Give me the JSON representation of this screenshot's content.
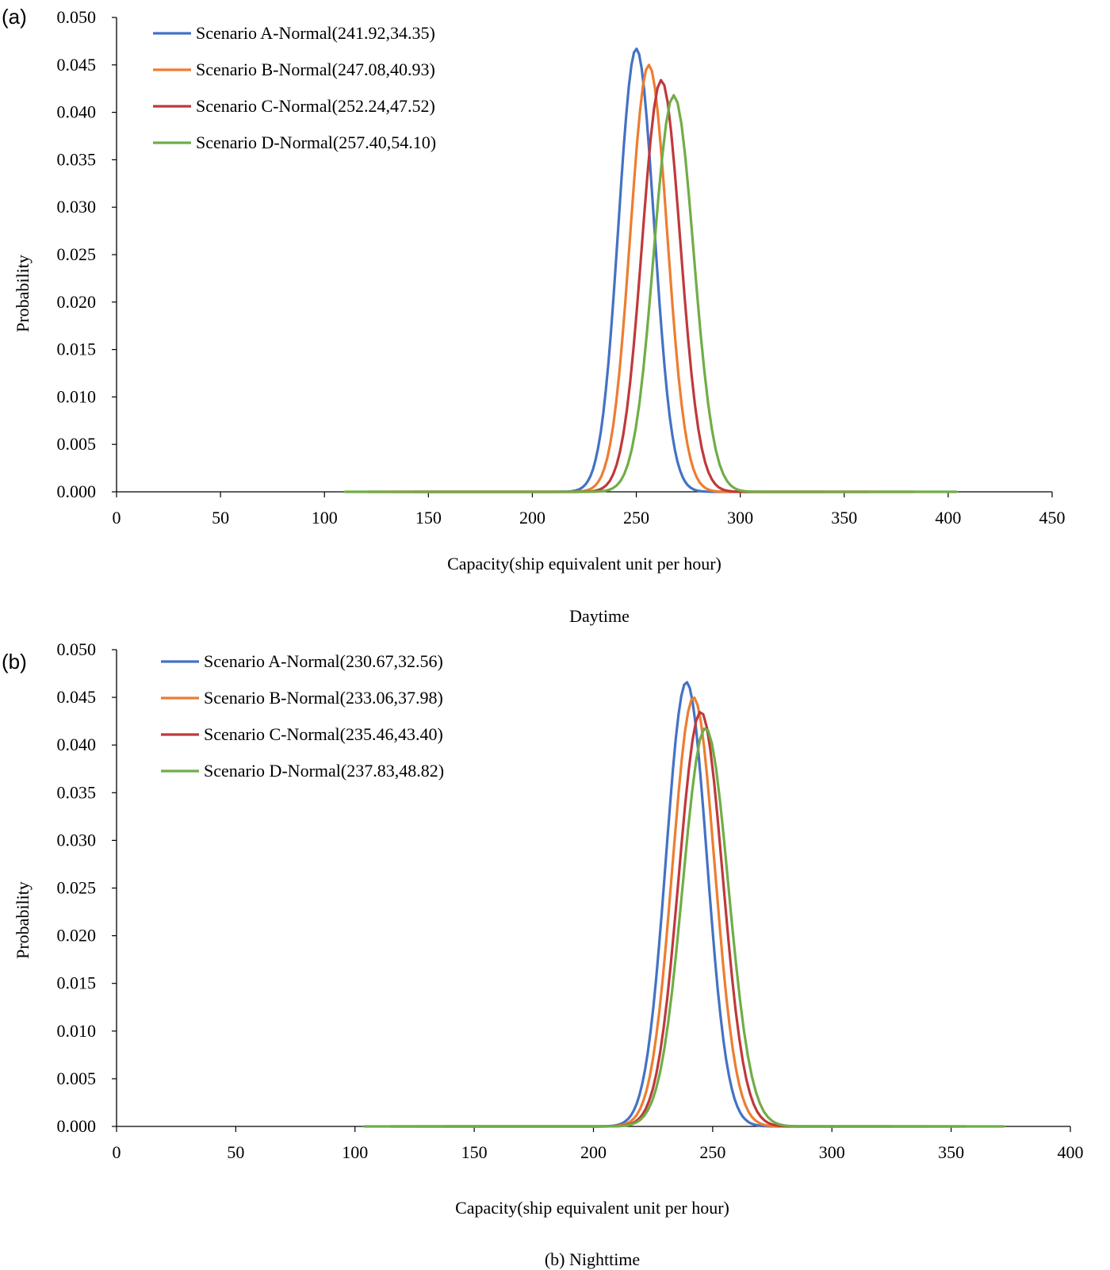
{
  "chart_data": [
    {
      "type": "line",
      "panel_label": "(a)",
      "caption": "Daytime",
      "xlabel": "Capacity(ship  equivalent  unit  per hour)",
      "ylabel": "Probability",
      "xlim": [
        0,
        450
      ],
      "ylim": [
        0,
        0.05
      ],
      "x_ticks": [
        "0",
        "50",
        "100",
        "150",
        "200",
        "250",
        "300",
        "350",
        "400",
        "450"
      ],
      "y_ticks": [
        "0.000",
        "0.005",
        "0.010",
        "0.015",
        "0.020",
        "0.025",
        "0.030",
        "0.035",
        "0.040",
        "0.045",
        "0.050"
      ],
      "legend_position": "top-left",
      "series": [
        {
          "name": "Scenario A-Normal(241.92,34.35)",
          "color": "#4472C4",
          "x_range": [
            143,
            340
          ],
          "peak_x": 250,
          "peak_y": 0.0467
        },
        {
          "name": "Scenario B-Normal(247.08,40.93)",
          "color": "#ED7D31",
          "x_range": [
            133,
            362
          ],
          "peak_x": 256,
          "peak_y": 0.045
        },
        {
          "name": "Scenario C-Normal(252.24,47.52)",
          "color": "#C0393B",
          "x_range": [
            121,
            383
          ],
          "peak_x": 262,
          "peak_y": 0.0434
        },
        {
          "name": "Scenario D-Normal(257.40,54.10)",
          "color": "#70AD47",
          "x_range": [
            110,
            404
          ],
          "peak_x": 268,
          "peak_y": 0.0418
        }
      ]
    },
    {
      "type": "line",
      "panel_label": "(b)",
      "caption": "(b) Nighttime",
      "xlabel": "Capacity(ship  equivalent  unit  per hour)",
      "ylabel": "Probability",
      "xlim": [
        0,
        400
      ],
      "ylim": [
        0,
        0.05
      ],
      "x_ticks": [
        "0",
        "50",
        "100",
        "150",
        "200",
        "250",
        "300",
        "350",
        "400"
      ],
      "y_ticks": [
        "0.000",
        "0.005",
        "0.010",
        "0.015",
        "0.020",
        "0.025",
        "0.030",
        "0.035",
        "0.040",
        "0.045",
        "0.050"
      ],
      "legend_position": "top-left",
      "series": [
        {
          "name": "Scenario A-Normal(230.67,32.56)",
          "color": "#4472C4",
          "x_range": [
            137,
            325
          ],
          "peak_x": 239,
          "peak_y": 0.0466
        },
        {
          "name": "Scenario B-Normal(233.06,37.98)",
          "color": "#ED7D31",
          "x_range": [
            126,
            340
          ],
          "peak_x": 242,
          "peak_y": 0.045
        },
        {
          "name": "Scenario C-Normal(235.46,43.40)",
          "color": "#C0393B",
          "x_range": [
            115,
            356
          ],
          "peak_x": 245,
          "peak_y": 0.0435
        },
        {
          "name": "Scenario D-Normal(237.83,48.82)",
          "color": "#70AD47",
          "x_range": [
            104,
            372
          ],
          "peak_x": 247,
          "peak_y": 0.0418
        }
      ]
    }
  ]
}
